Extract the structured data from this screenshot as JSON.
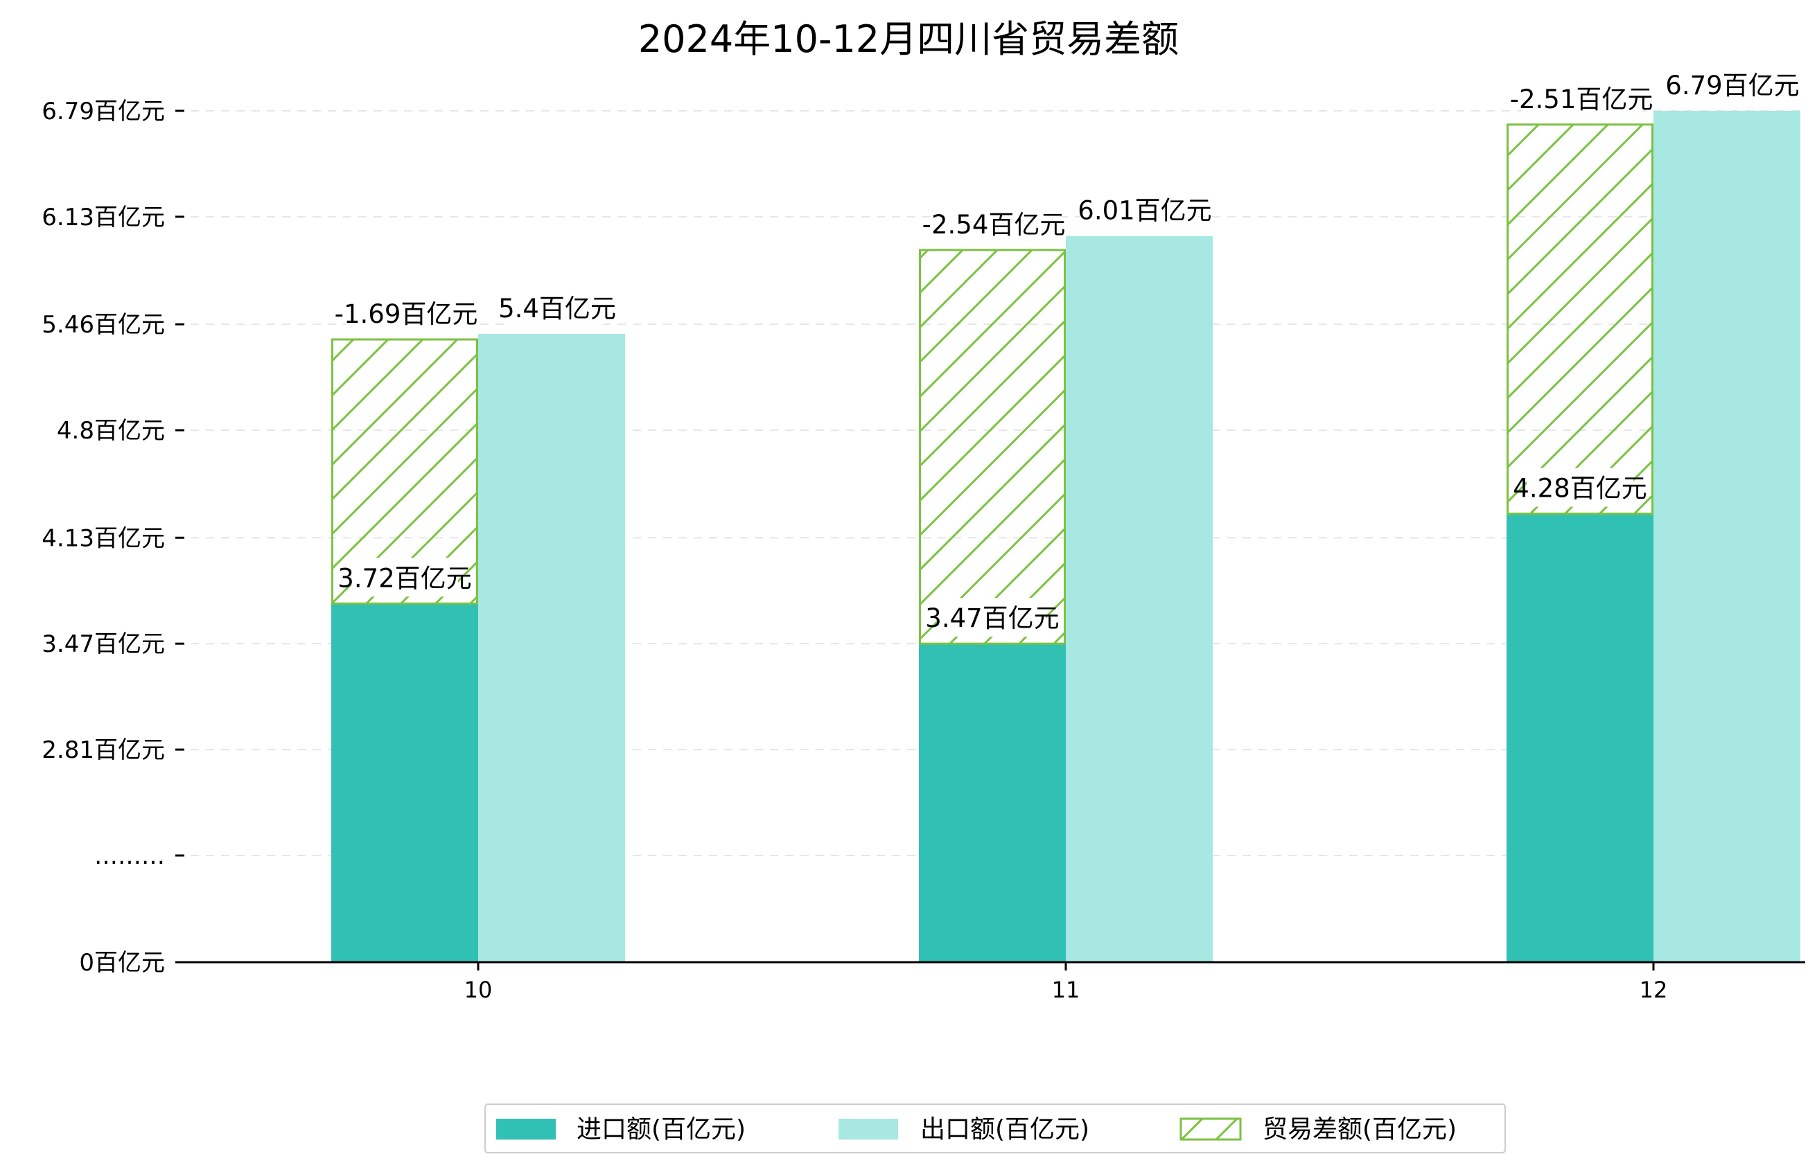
{
  "chart_data": {
    "type": "bar",
    "title": "2024年10-12月四川省贸易差额",
    "categories": [
      "10",
      "11",
      "12"
    ],
    "y_tick_labels": [
      "0百亿元",
      "………",
      "2.81百亿元",
      "3.47百亿元",
      "4.13百亿元",
      "4.8百亿元",
      "5.46百亿元",
      "6.13百亿元",
      "6.79百亿元"
    ],
    "y_ticks_note": "axis is broken: 0 at baseline, then ticks from 2.81 to 6.79",
    "grid": "horizontal dashed",
    "legend_position": "bottom-center",
    "series": [
      {
        "name": "进口额(百亿元)",
        "values": [
          3.72,
          3.47,
          4.28
        ],
        "labels": [
          "3.72百亿元",
          "3.47百亿元",
          "4.28百亿元"
        ],
        "color": "#31c0b4"
      },
      {
        "name": "出口额(百亿元)",
        "values": [
          5.4,
          6.01,
          6.79
        ],
        "labels": [
          "5.4百亿元",
          "6.01百亿元",
          "6.79百亿元"
        ],
        "color": "#a8e8e2"
      },
      {
        "name": "贸易差额(百亿元)",
        "values": [
          -1.69,
          -2.54,
          -2.51
        ],
        "labels": [
          "-1.69百亿元",
          "-2.54百亿元",
          "-2.51百亿元"
        ],
        "color": "#7cc242",
        "pattern": "hatched",
        "stacked_on": "进口额(百亿元)"
      }
    ]
  }
}
